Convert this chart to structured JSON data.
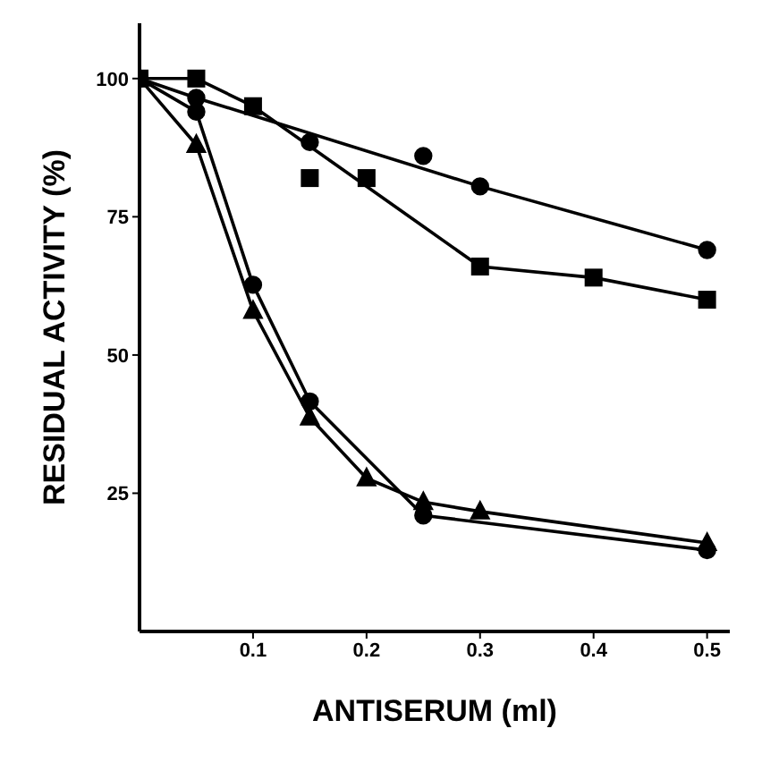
{
  "chart_data": {
    "type": "line",
    "xlabel": "ANTISERUM (ml)",
    "ylabel": "RESIDUAL ACTIVITY (%)",
    "xlim": [
      0,
      0.52
    ],
    "xticks": [
      0.1,
      0.2,
      0.3,
      0.4,
      0.5
    ],
    "ylim": [
      0,
      110
    ],
    "yticks": [
      25,
      50,
      75,
      100
    ],
    "grid": false,
    "series": [
      {
        "color": "#000000",
        "marker": "circle",
        "x": [
          0,
          0.05,
          0.3,
          0.5
        ],
        "values": [
          100,
          96.5,
          80.5,
          69
        ]
      },
      {
        "type": "scatter",
        "color": "#000000",
        "marker": "circle",
        "x": [
          0.15,
          0.25
        ],
        "values": [
          88.5,
          86
        ]
      },
      {
        "color": "#000000",
        "marker": "square",
        "x": [
          0,
          0.05,
          0.1,
          0.3,
          0.4,
          0.5
        ],
        "values": [
          100,
          100,
          95,
          66,
          64,
          60
        ]
      },
      {
        "type": "scatter",
        "color": "#000000",
        "marker": "square",
        "x": [
          0.15,
          0.2
        ],
        "values": [
          82,
          82
        ]
      },
      {
        "color": "#000000",
        "marker": "circle",
        "x": [
          0,
          0.05,
          0.1,
          0.15,
          0.25,
          0.5
        ],
        "values": [
          100,
          94,
          62.7,
          41.6,
          21,
          14.7
        ]
      },
      {
        "color": "#000000",
        "marker": "triangle",
        "x": [
          0,
          0.05,
          0.1,
          0.15,
          0.2,
          0.25,
          0.3,
          0.5
        ],
        "values": [
          100,
          88,
          58,
          38.7,
          27.7,
          23.4,
          21.7,
          16
        ]
      }
    ]
  }
}
